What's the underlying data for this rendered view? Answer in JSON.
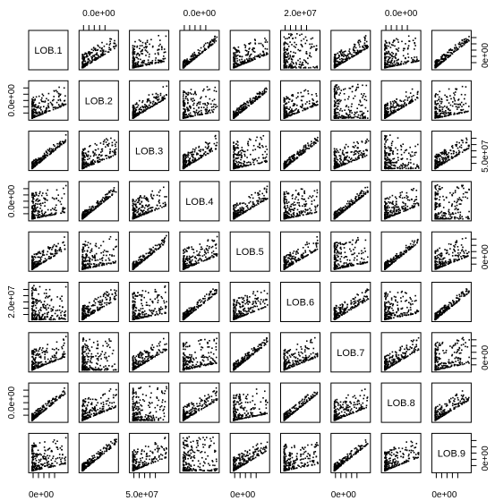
{
  "chart_data": {
    "type": "scatter",
    "variables": [
      "LOB.1",
      "LOB.2",
      "LOB.3",
      "LOB.4",
      "LOB.5",
      "LOB.6",
      "LOB.7",
      "LOB.8",
      "LOB.9"
    ],
    "top_axis_labels": [
      {
        "panel": 2,
        "text": "0.0e+00"
      },
      {
        "panel": 4,
        "text": "0.0e+00"
      },
      {
        "panel": 6,
        "text": "2.0e+07"
      },
      {
        "panel": 8,
        "text": "0.0e+00"
      }
    ],
    "bottom_axis_labels": [
      {
        "panel": 1,
        "text": "0e+00"
      },
      {
        "panel": 3,
        "text": "5.0e+07"
      },
      {
        "panel": 5,
        "text": "0e+00"
      },
      {
        "panel": 7,
        "text": "0e+00"
      },
      {
        "panel": 9,
        "text": "0e+00"
      }
    ],
    "left_axis_labels": [
      {
        "panel": 2,
        "text": "0.0e+00"
      },
      {
        "panel": 4,
        "text": "0.0e+00"
      },
      {
        "panel": 6,
        "text": "2.0e+07"
      },
      {
        "panel": 8,
        "text": "0.0e+00"
      }
    ],
    "right_axis_labels": [
      {
        "panel": 1,
        "text": "0e+00"
      },
      {
        "panel": 3,
        "text": "5.0e+07"
      },
      {
        "panel": 5,
        "text": "0e+00"
      },
      {
        "panel": 7,
        "text": "0e+00"
      },
      {
        "panel": 9,
        "text": "0e+00"
      }
    ],
    "point_color": "#000000",
    "frame_color": "#000000",
    "grid": false
  }
}
